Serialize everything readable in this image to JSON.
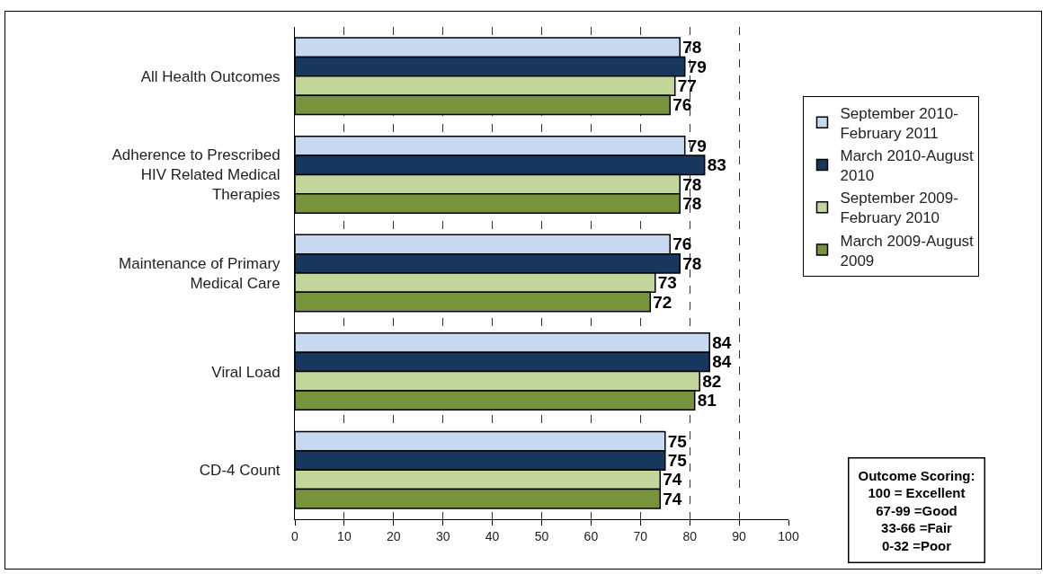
{
  "chart_data": {
    "type": "bar",
    "orientation": "horizontal",
    "categories": [
      "All Health Outcomes",
      "Adherence to Prescribed HIV Related Medical Therapies",
      "Maintenance of Primary Medical Care",
      "Viral Load",
      "CD-4 Count"
    ],
    "series": [
      {
        "name": "September 2010-February 2011",
        "color": "#c6d9f1",
        "values": [
          78,
          79,
          76,
          84,
          75
        ]
      },
      {
        "name": "March 2010-August 2010",
        "color": "#17375e",
        "values": [
          79,
          83,
          78,
          84,
          75
        ]
      },
      {
        "name": "September 2009-February 2010",
        "color": "#c3d69b",
        "values": [
          77,
          78,
          73,
          82,
          74
        ]
      },
      {
        "name": "March 2009-August 2009",
        "color": "#77933c",
        "values": [
          76,
          78,
          72,
          81,
          74
        ]
      }
    ],
    "xlim": [
      0,
      100
    ],
    "xticks": [
      0,
      10,
      20,
      30,
      40,
      50,
      60,
      70,
      80,
      90,
      100
    ],
    "grid": "x",
    "legend": "right",
    "data_labels": true,
    "annotations": [
      "Outcome Scoring:\n100 = Excellent\n67-99 =Good\n33-66 =Fair\n0-32 =Poor"
    ]
  }
}
